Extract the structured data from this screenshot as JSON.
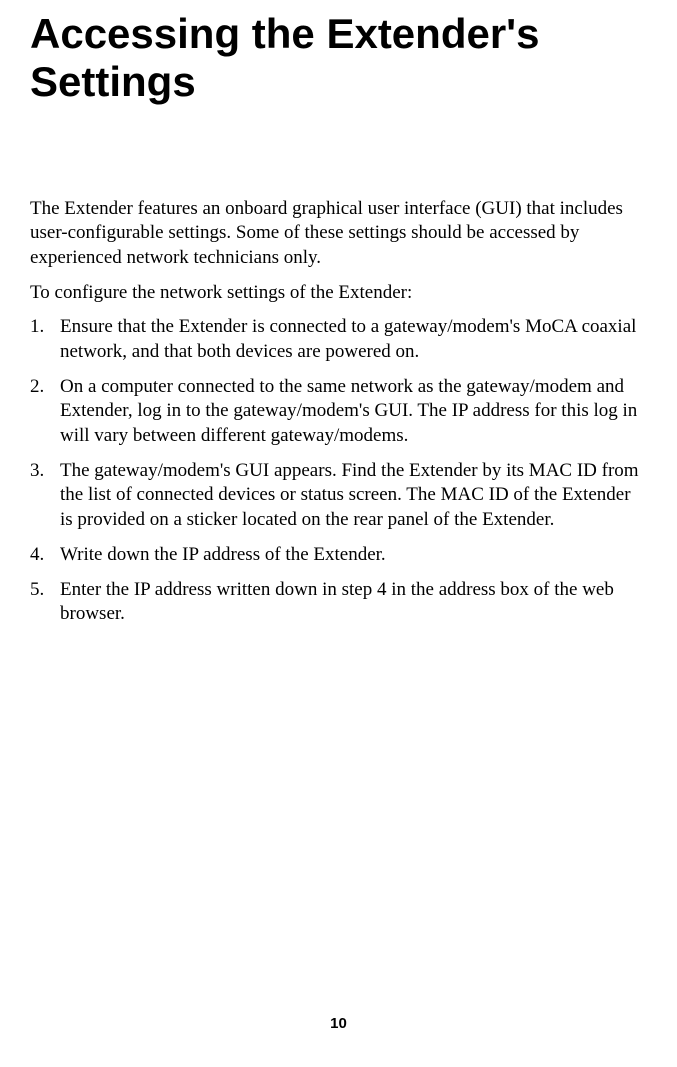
{
  "title": "Accessing the Extender's Settings",
  "intro": "The Extender features an onboard graphical user interface (GUI) that includes user-configurable settings. Some of these settings should be accessed by experienced network technicians only.",
  "leadin": "To configure the network settings of the Extender:",
  "steps": [
    {
      "num": "1.",
      "text": "Ensure that the Extender is connected to a gateway/modem's MoCA coaxial network, and that both devices are powered on."
    },
    {
      "num": "2.",
      "text": "On a computer connected to the same network as the gateway/modem and Extender, log in to the gateway/modem's GUI. The IP address for this log in will vary between different gateway/modems."
    },
    {
      "num": "3.",
      "text": "The gateway/modem's GUI appears. Find the Extender by its MAC ID from the list of connected devices or status screen. The MAC ID of the Extender is provided on a sticker located on the rear panel of the Extender."
    },
    {
      "num": "4.",
      "text": "Write down the IP address of the Extender."
    },
    {
      "num": "5.",
      "text": "Enter the IP address written down in step 4 in the address box of the web browser."
    }
  ],
  "page_number": "10",
  "colors": {
    "background": "#ffffff",
    "text": "#000000"
  },
  "typography": {
    "title_fontsize": 42,
    "title_family": "Arial",
    "title_weight": "bold",
    "body_fontsize": 19,
    "body_family": "Georgia",
    "pagenum_fontsize": 15,
    "pagenum_weight": "bold"
  }
}
